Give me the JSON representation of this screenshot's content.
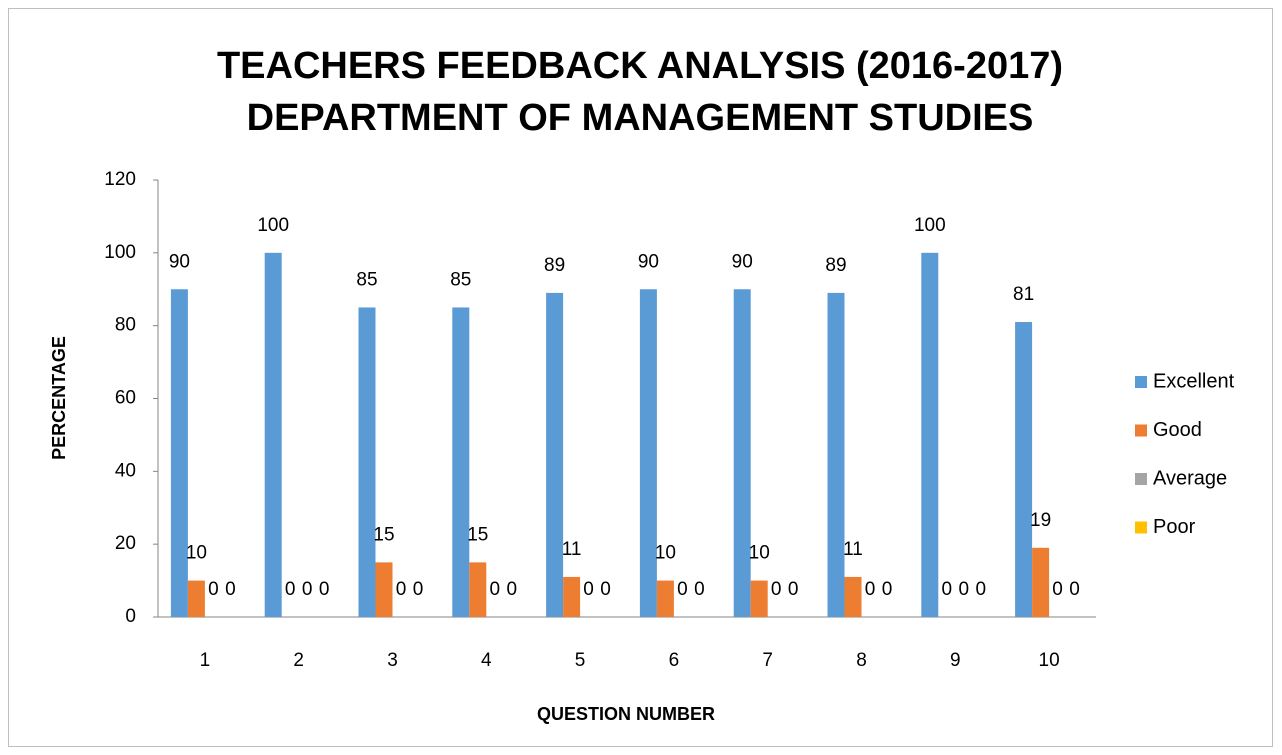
{
  "chart_data": {
    "type": "bar",
    "title": [
      "TEACHERS FEEDBACK ANALYSIS (2016-2017)",
      "DEPARTMENT OF MANAGEMENT STUDIES"
    ],
    "x_label": "QUESTION NUMBER",
    "y_label": "PERCENTAGE",
    "categories": [
      "1",
      "2",
      "3",
      "4",
      "5",
      "6",
      "7",
      "8",
      "9",
      "10"
    ],
    "series": [
      {
        "name": "Excellent",
        "color": "#5b9bd5",
        "values": [
          90,
          100,
          85,
          85,
          89,
          90,
          90,
          89,
          100,
          81
        ]
      },
      {
        "name": "Good",
        "color": "#ed7d31",
        "values": [
          10,
          0,
          15,
          15,
          11,
          10,
          10,
          11,
          0,
          19
        ]
      },
      {
        "name": "Average",
        "color": "#a5a5a5",
        "values": [
          0,
          0,
          0,
          0,
          0,
          0,
          0,
          0,
          0,
          0
        ]
      },
      {
        "name": "Poor",
        "color": "#ffc000",
        "values": [
          0,
          0,
          0,
          0,
          0,
          0,
          0,
          0,
          0,
          0
        ]
      }
    ],
    "ylim": [
      0,
      120
    ],
    "yticks": [
      0,
      20,
      40,
      60,
      80,
      100,
      120
    ],
    "legend": "right"
  }
}
